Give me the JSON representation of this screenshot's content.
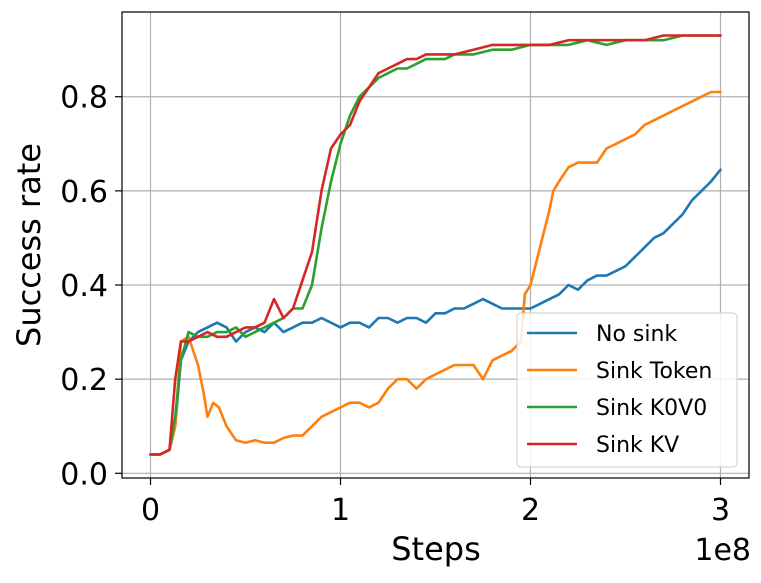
{
  "chart_data": {
    "type": "line",
    "title": "",
    "xlabel": "Steps",
    "ylabel": "Success rate",
    "x_offset_text": "1e8",
    "xlim": [
      -0.15,
      3.15
    ],
    "ylim": [
      -0.01,
      0.98
    ],
    "x_ticks": [
      0,
      1,
      2,
      3
    ],
    "x_tick_labels": [
      "0",
      "1",
      "2",
      "3"
    ],
    "y_ticks": [
      0.0,
      0.2,
      0.4,
      0.6,
      0.8
    ],
    "y_tick_labels": [
      "0.0",
      "0.2",
      "0.4",
      "0.6",
      "0.8"
    ],
    "grid": true,
    "legend_position": "lower-right",
    "series": [
      {
        "name": "No sink",
        "color": "#1f77b4",
        "x": [
          0,
          0.05,
          0.1,
          0.13,
          0.16,
          0.2,
          0.25,
          0.3,
          0.35,
          0.4,
          0.45,
          0.5,
          0.55,
          0.6,
          0.65,
          0.7,
          0.75,
          0.8,
          0.85,
          0.9,
          0.95,
          1.0,
          1.05,
          1.1,
          1.15,
          1.2,
          1.25,
          1.3,
          1.35,
          1.4,
          1.45,
          1.5,
          1.55,
          1.6,
          1.65,
          1.7,
          1.75,
          1.8,
          1.85,
          1.9,
          1.95,
          2.0,
          2.05,
          2.1,
          2.15,
          2.2,
          2.25,
          2.3,
          2.35,
          2.4,
          2.45,
          2.5,
          2.55,
          2.6,
          2.65,
          2.7,
          2.75,
          2.8,
          2.85,
          2.9,
          2.95,
          3.0
        ],
        "y": [
          0.04,
          0.04,
          0.05,
          0.1,
          0.24,
          0.28,
          0.3,
          0.31,
          0.32,
          0.31,
          0.28,
          0.3,
          0.31,
          0.3,
          0.32,
          0.3,
          0.31,
          0.32,
          0.32,
          0.33,
          0.32,
          0.31,
          0.32,
          0.32,
          0.31,
          0.33,
          0.33,
          0.32,
          0.33,
          0.33,
          0.32,
          0.34,
          0.34,
          0.35,
          0.35,
          0.36,
          0.37,
          0.36,
          0.35,
          0.35,
          0.35,
          0.35,
          0.36,
          0.37,
          0.38,
          0.4,
          0.39,
          0.41,
          0.42,
          0.42,
          0.43,
          0.44,
          0.46,
          0.48,
          0.5,
          0.51,
          0.53,
          0.55,
          0.58,
          0.6,
          0.62,
          0.645
        ]
      },
      {
        "name": "Sink Token",
        "color": "#ff7f0e",
        "x": [
          0,
          0.05,
          0.1,
          0.13,
          0.16,
          0.2,
          0.25,
          0.28,
          0.3,
          0.33,
          0.36,
          0.4,
          0.45,
          0.5,
          0.55,
          0.6,
          0.65,
          0.7,
          0.75,
          0.8,
          0.85,
          0.9,
          0.95,
          1.0,
          1.05,
          1.1,
          1.15,
          1.2,
          1.25,
          1.3,
          1.35,
          1.4,
          1.45,
          1.5,
          1.55,
          1.6,
          1.65,
          1.7,
          1.75,
          1.8,
          1.85,
          1.9,
          1.95,
          1.97,
          2.0,
          2.05,
          2.1,
          2.12,
          2.15,
          2.2,
          2.25,
          2.3,
          2.35,
          2.4,
          2.45,
          2.5,
          2.55,
          2.6,
          2.65,
          2.7,
          2.75,
          2.8,
          2.85,
          2.9,
          2.95,
          3.0
        ],
        "y": [
          0.04,
          0.04,
          0.05,
          0.1,
          0.28,
          0.29,
          0.23,
          0.17,
          0.12,
          0.15,
          0.14,
          0.1,
          0.07,
          0.065,
          0.07,
          0.065,
          0.065,
          0.075,
          0.08,
          0.08,
          0.1,
          0.12,
          0.13,
          0.14,
          0.15,
          0.15,
          0.14,
          0.15,
          0.18,
          0.2,
          0.2,
          0.18,
          0.2,
          0.21,
          0.22,
          0.23,
          0.23,
          0.23,
          0.2,
          0.24,
          0.25,
          0.26,
          0.28,
          0.38,
          0.4,
          0.48,
          0.56,
          0.6,
          0.62,
          0.65,
          0.66,
          0.66,
          0.66,
          0.69,
          0.7,
          0.71,
          0.72,
          0.74,
          0.75,
          0.76,
          0.77,
          0.78,
          0.79,
          0.8,
          0.81,
          0.81
        ]
      },
      {
        "name": "Sink K0V0",
        "color": "#2ca02c",
        "x": [
          0,
          0.05,
          0.1,
          0.13,
          0.16,
          0.2,
          0.25,
          0.3,
          0.35,
          0.4,
          0.45,
          0.5,
          0.55,
          0.6,
          0.65,
          0.7,
          0.75,
          0.8,
          0.85,
          0.9,
          0.95,
          1.0,
          1.05,
          1.1,
          1.15,
          1.2,
          1.25,
          1.3,
          1.35,
          1.4,
          1.45,
          1.5,
          1.55,
          1.6,
          1.7,
          1.8,
          1.9,
          2.0,
          2.1,
          2.2,
          2.3,
          2.4,
          2.5,
          2.6,
          2.7,
          2.8,
          2.9,
          3.0
        ],
        "y": [
          0.04,
          0.04,
          0.05,
          0.12,
          0.24,
          0.3,
          0.29,
          0.29,
          0.3,
          0.3,
          0.31,
          0.29,
          0.3,
          0.31,
          0.32,
          0.33,
          0.35,
          0.35,
          0.4,
          0.52,
          0.62,
          0.7,
          0.76,
          0.8,
          0.82,
          0.84,
          0.85,
          0.86,
          0.86,
          0.87,
          0.88,
          0.88,
          0.88,
          0.89,
          0.89,
          0.9,
          0.9,
          0.91,
          0.91,
          0.91,
          0.92,
          0.91,
          0.92,
          0.92,
          0.92,
          0.93,
          0.93,
          0.93
        ]
      },
      {
        "name": "Sink KV",
        "color": "#d62728",
        "x": [
          0,
          0.05,
          0.1,
          0.13,
          0.16,
          0.2,
          0.25,
          0.3,
          0.35,
          0.4,
          0.45,
          0.5,
          0.55,
          0.6,
          0.65,
          0.7,
          0.75,
          0.8,
          0.85,
          0.9,
          0.95,
          1.0,
          1.05,
          1.1,
          1.15,
          1.2,
          1.25,
          1.3,
          1.35,
          1.4,
          1.45,
          1.5,
          1.55,
          1.6,
          1.7,
          1.8,
          1.9,
          2.0,
          2.1,
          2.2,
          2.3,
          2.4,
          2.5,
          2.6,
          2.7,
          2.8,
          2.9,
          3.0
        ],
        "y": [
          0.04,
          0.04,
          0.05,
          0.2,
          0.28,
          0.28,
          0.29,
          0.3,
          0.29,
          0.29,
          0.3,
          0.31,
          0.31,
          0.32,
          0.37,
          0.33,
          0.35,
          0.41,
          0.47,
          0.6,
          0.69,
          0.72,
          0.74,
          0.79,
          0.82,
          0.85,
          0.86,
          0.87,
          0.88,
          0.88,
          0.89,
          0.89,
          0.89,
          0.89,
          0.9,
          0.91,
          0.91,
          0.91,
          0.91,
          0.92,
          0.92,
          0.92,
          0.92,
          0.92,
          0.93,
          0.93,
          0.93,
          0.93
        ]
      }
    ]
  }
}
